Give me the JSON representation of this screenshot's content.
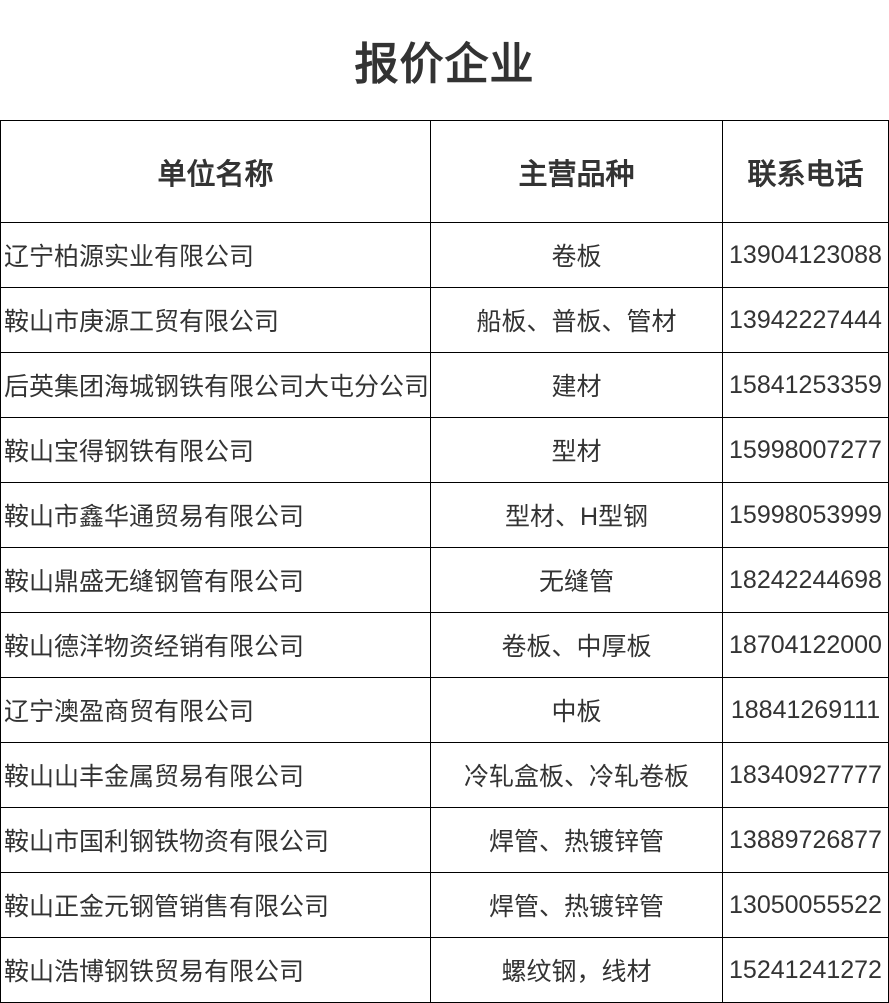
{
  "title": "报价企业",
  "table": {
    "columns": [
      {
        "label": "单位名称"
      },
      {
        "label": "主营品种"
      },
      {
        "label": "联系电话"
      }
    ],
    "rows": [
      {
        "company": "辽宁柏源实业有限公司",
        "products": "卷板",
        "phone": "13904123088"
      },
      {
        "company": "鞍山市庚源工贸有限公司",
        "products": "船板、普板、管材",
        "phone": "13942227444"
      },
      {
        "company": "后英集团海城钢铁有限公司大屯分公司",
        "products": "建材",
        "phone": "15841253359"
      },
      {
        "company": "鞍山宝得钢铁有限公司",
        "products": "型材",
        "phone": "15998007277"
      },
      {
        "company": "鞍山市鑫华通贸易有限公司",
        "products": "型材、H型钢",
        "phone": "15998053999"
      },
      {
        "company": "鞍山鼎盛无缝钢管有限公司",
        "products": "无缝管",
        "phone": "18242244698"
      },
      {
        "company": "鞍山德洋物资经销有限公司",
        "products": "卷板、中厚板",
        "phone": "18704122000"
      },
      {
        "company": "辽宁澳盈商贸有限公司",
        "products": "中板",
        "phone": "18841269111"
      },
      {
        "company": "鞍山山丰金属贸易有限公司",
        "products": "冷轧盒板、冷轧卷板",
        "phone": "18340927777"
      },
      {
        "company": "鞍山市国利钢铁物资有限公司",
        "products": "焊管、热镀锌管",
        "phone": "13889726877"
      },
      {
        "company": "鞍山正金元钢管销售有限公司",
        "products": "焊管、热镀锌管",
        "phone": "13050055522"
      },
      {
        "company": "鞍山浩博钢铁贸易有限公司",
        "products": "螺纹钢，线材",
        "phone": "15241241272"
      }
    ]
  },
  "colors": {
    "text": "#333333",
    "border": "#000000",
    "background": "#ffffff"
  }
}
